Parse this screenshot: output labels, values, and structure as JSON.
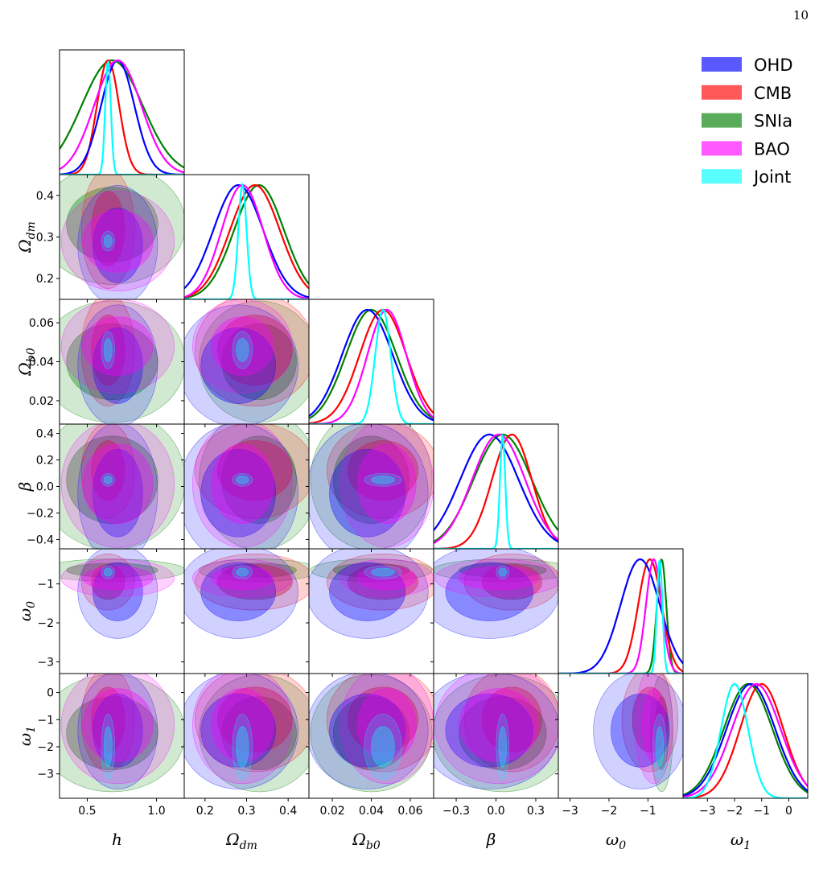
{
  "page_number": "10",
  "chart_data": {
    "type": "corner",
    "series": [
      {
        "name": "OHD",
        "color": "#0000ff"
      },
      {
        "name": "CMB",
        "color": "#ff0000"
      },
      {
        "name": "SNIa",
        "color": "#008000"
      },
      {
        "name": "BAO",
        "color": "#ff00ff"
      },
      {
        "name": "Joint",
        "color": "#00ffff"
      }
    ],
    "params": [
      {
        "label": "h",
        "label_sub": "",
        "lim": [
          0.3,
          1.2
        ],
        "xticks": [
          0.5,
          {
            "value": 1,
            "label": "1.0"
          }
        ],
        "yticks": [],
        "mean": [
          0.72,
          0.65,
          0.68,
          0.72,
          0.65
        ],
        "std": [
          0.12,
          0.08,
          0.22,
          0.17,
          0.02
        ]
      },
      {
        "label": "Ω",
        "label_sub": "dm",
        "lim": [
          0.15,
          0.45
        ],
        "xticks": [
          0.2,
          0.3,
          0.4
        ],
        "yticks": [
          0.2,
          0.3,
          0.4
        ],
        "mean": [
          0.28,
          0.32,
          0.33,
          0.29,
          0.29
        ],
        "std": [
          0.06,
          0.06,
          0.06,
          0.05,
          0.01
        ]
      },
      {
        "label": "Ω",
        "label_sub": "b0",
        "lim": [
          0.008,
          0.072
        ],
        "xticks": [
          0.02,
          0.04,
          0.06
        ],
        "yticks": [
          0.02,
          0.04,
          0.06
        ],
        "mean": [
          0.038,
          0.046,
          0.04,
          0.048,
          0.046
        ],
        "std": [
          0.013,
          0.012,
          0.013,
          0.01,
          0.004
        ]
      },
      {
        "label": "β",
        "label_sub": "",
        "lim": [
          -0.47,
          0.47
        ],
        "xticks": [
          {
            "value": -0.3,
            "label": "−0.3"
          },
          {
            "value": 0,
            "label": "0.0"
          },
          0.3
        ],
        "yticks": [
          {
            "value": -0.4,
            "label": "−0.4"
          },
          {
            "value": -0.2,
            "label": "−0.2"
          },
          {
            "value": 0,
            "label": "0.0"
          },
          0.2,
          0.4
        ],
        "mean": [
          -0.05,
          0.12,
          0.05,
          0.02,
          0.05
        ],
        "std": [
          0.22,
          0.15,
          0.22,
          0.2,
          0.02
        ]
      },
      {
        "label": "ω",
        "label_sub": "0",
        "lim": [
          -3.3,
          -0.1
        ],
        "xticks": [
          {
            "value": -3,
            "label": "−3"
          },
          {
            "value": -2,
            "label": "−2"
          },
          {
            "value": -1,
            "label": "−1"
          }
        ],
        "yticks": [
          {
            "value": -3,
            "label": "−3"
          },
          {
            "value": -2,
            "label": "−2"
          },
          {
            "value": -1,
            "label": "−1"
          }
        ],
        "mean": [
          -1.2,
          -0.95,
          -0.65,
          -0.85,
          -0.7
        ],
        "std": [
          0.5,
          0.3,
          0.12,
          0.2,
          0.07
        ]
      },
      {
        "label": "ω",
        "label_sub": "1",
        "lim": [
          -3.9,
          0.7
        ],
        "xticks": [
          {
            "value": -3,
            "label": "−3"
          },
          {
            "value": -2,
            "label": "−2"
          },
          {
            "value": -1,
            "label": "−1"
          },
          0
        ],
        "yticks": [
          {
            "value": -3,
            "label": "−3"
          },
          {
            "value": -2,
            "label": "−2"
          },
          {
            "value": -1,
            "label": "−1"
          },
          0
        ],
        "mean": [
          -1.4,
          -1.0,
          -1.5,
          -1.2,
          -2.0
        ],
        "std": [
          0.9,
          0.8,
          0.9,
          0.9,
          0.5
        ]
      }
    ]
  }
}
